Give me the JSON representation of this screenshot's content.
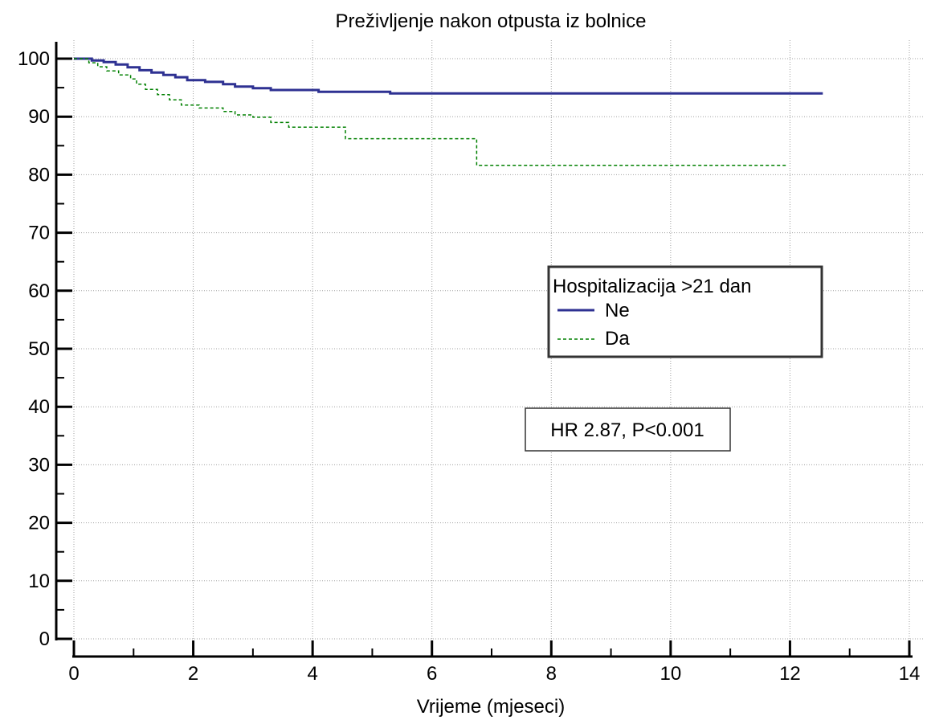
{
  "chart_data": {
    "type": "line",
    "title": "Preživljenje nakon otpusta iz bolnice",
    "xlabel": "Vrijeme (mjeseci)",
    "ylabel": "",
    "xlim": [
      0,
      14
    ],
    "ylim": [
      0,
      100
    ],
    "xticks": [
      0,
      2,
      4,
      6,
      8,
      10,
      12,
      14
    ],
    "yticks": [
      0,
      10,
      20,
      30,
      40,
      50,
      60,
      70,
      80,
      90,
      100
    ],
    "grid": true,
    "legend": {
      "title": "Hospitalizacija >21 dan",
      "placement": "center-right"
    },
    "annotation": "HR 2.87, P<0.001",
    "series": [
      {
        "name": "Ne",
        "color": "#2e3192",
        "style": "solid",
        "points": [
          [
            0,
            100
          ],
          [
            0.3,
            100
          ],
          [
            0.3,
            99.7
          ],
          [
            0.5,
            99.7
          ],
          [
            0.5,
            99.4
          ],
          [
            0.7,
            99.4
          ],
          [
            0.7,
            99.0
          ],
          [
            0.9,
            99.0
          ],
          [
            0.9,
            98.5
          ],
          [
            1.1,
            98.5
          ],
          [
            1.1,
            98.0
          ],
          [
            1.3,
            98.0
          ],
          [
            1.3,
            97.6
          ],
          [
            1.5,
            97.6
          ],
          [
            1.5,
            97.2
          ],
          [
            1.7,
            97.2
          ],
          [
            1.7,
            96.8
          ],
          [
            1.9,
            96.8
          ],
          [
            1.9,
            96.3
          ],
          [
            2.2,
            96.3
          ],
          [
            2.2,
            96.0
          ],
          [
            2.5,
            96.0
          ],
          [
            2.5,
            95.6
          ],
          [
            2.7,
            95.6
          ],
          [
            2.7,
            95.2
          ],
          [
            3.0,
            95.2
          ],
          [
            3.0,
            94.9
          ],
          [
            3.3,
            94.9
          ],
          [
            3.3,
            94.6
          ],
          [
            4.1,
            94.6
          ],
          [
            4.1,
            94.3
          ],
          [
            5.3,
            94.3
          ],
          [
            5.3,
            94.0
          ],
          [
            12.55,
            94.0
          ]
        ]
      },
      {
        "name": "Da",
        "color": "#008000",
        "style": "dashed",
        "points": [
          [
            0,
            100
          ],
          [
            0.25,
            100
          ],
          [
            0.25,
            99.3
          ],
          [
            0.4,
            99.3
          ],
          [
            0.4,
            98.6
          ],
          [
            0.55,
            98.6
          ],
          [
            0.55,
            97.9
          ],
          [
            0.75,
            97.9
          ],
          [
            0.75,
            97.2
          ],
          [
            0.95,
            97.2
          ],
          [
            0.95,
            96.5
          ],
          [
            1.05,
            96.5
          ],
          [
            1.05,
            95.6
          ],
          [
            1.2,
            95.6
          ],
          [
            1.2,
            94.7
          ],
          [
            1.4,
            94.7
          ],
          [
            1.4,
            93.8
          ],
          [
            1.6,
            93.8
          ],
          [
            1.6,
            92.9
          ],
          [
            1.8,
            92.9
          ],
          [
            1.8,
            92.0
          ],
          [
            2.1,
            92.0
          ],
          [
            2.1,
            91.5
          ],
          [
            2.5,
            91.5
          ],
          [
            2.5,
            90.9
          ],
          [
            2.7,
            90.9
          ],
          [
            2.7,
            90.3
          ],
          [
            3.0,
            90.3
          ],
          [
            3.0,
            89.9
          ],
          [
            3.3,
            89.9
          ],
          [
            3.3,
            89.0
          ],
          [
            3.6,
            89.0
          ],
          [
            3.6,
            88.2
          ],
          [
            4.55,
            88.2
          ],
          [
            4.55,
            86.2
          ],
          [
            6.75,
            86.2
          ],
          [
            6.75,
            81.6
          ],
          [
            11.95,
            81.6
          ]
        ]
      }
    ]
  }
}
